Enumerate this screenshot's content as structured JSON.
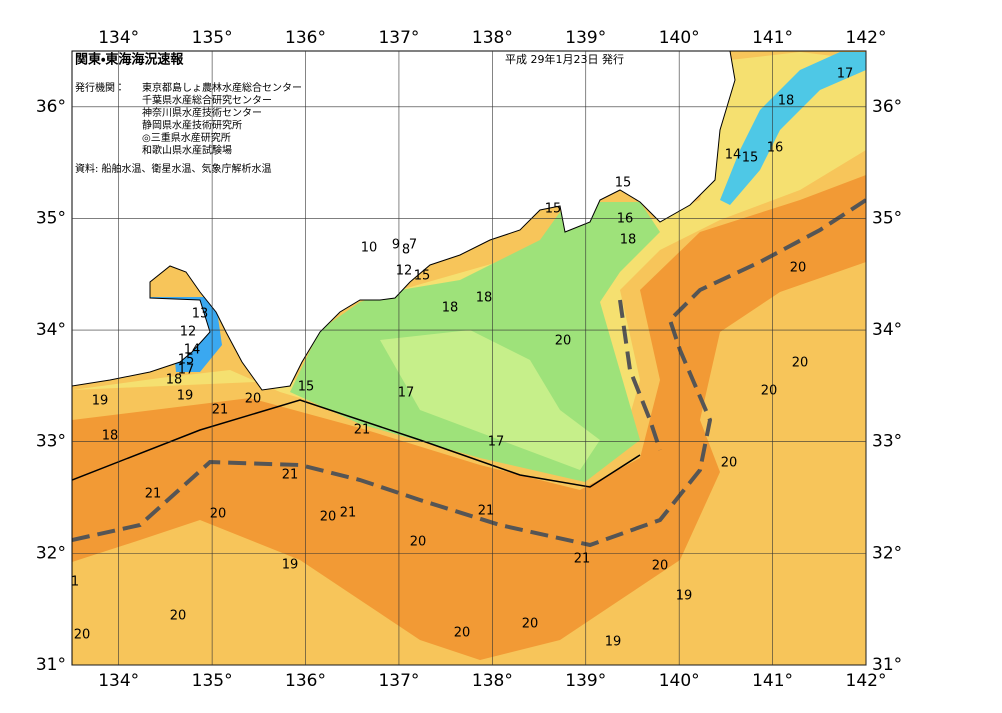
{
  "map": {
    "title": "関東・東海海況速報",
    "date": "平成 29年1月23日 発行",
    "issuer_label": "発行機関：",
    "issuers": [
      "東京都島しょ農林水産総合センター",
      "千葉県水産総合研究センター",
      "神奈川県水産技術センター",
      "静岡県水産技術研究所",
      "◎三重県水産研究所",
      "和歌山県水産試験場"
    ],
    "source": "資料: 船舶水温、衛星水温、気象庁解析水温",
    "lon_ticks": [
      {
        "value": 134,
        "label": "134°"
      },
      {
        "value": 135,
        "label": "135°"
      },
      {
        "value": 136,
        "label": "136°"
      },
      {
        "value": 137,
        "label": "137°"
      },
      {
        "value": 138,
        "label": "138°"
      },
      {
        "value": 139,
        "label": "139°"
      },
      {
        "value": 140,
        "label": "140°"
      },
      {
        "value": 141,
        "label": "141°"
      },
      {
        "value": 142,
        "label": "142°"
      }
    ],
    "lat_ticks": [
      {
        "value": 31,
        "label": "31°"
      },
      {
        "value": 32,
        "label": "32°"
      },
      {
        "value": 33,
        "label": "33°"
      },
      {
        "value": 34,
        "label": "34°"
      },
      {
        "value": 35,
        "label": "35°"
      },
      {
        "value": 36,
        "label": "36°"
      }
    ],
    "lon_range": [
      133.5,
      142
    ],
    "lat_range": [
      31,
      36.5
    ],
    "contour_labels": [
      13,
      12,
      14,
      15,
      17,
      18,
      19,
      19,
      18,
      21,
      20,
      21,
      15,
      17,
      17,
      18,
      18,
      20,
      10,
      9,
      8,
      7,
      12,
      15,
      15,
      15,
      16,
      18,
      14,
      15,
      16,
      18,
      17,
      20,
      20,
      20,
      20,
      21,
      21,
      20,
      20,
      21,
      20,
      21,
      21,
      20,
      19,
      19,
      20,
      20,
      20,
      20,
      19,
      1
    ]
  }
}
